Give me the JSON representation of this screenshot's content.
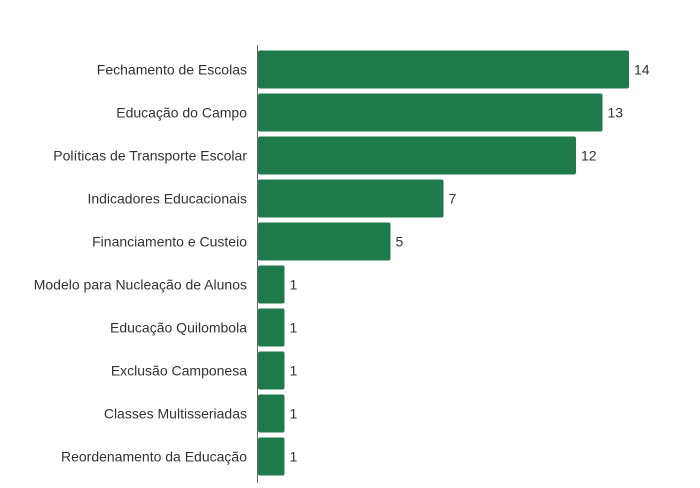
{
  "chart_data": {
    "type": "bar",
    "orientation": "horizontal",
    "categories": [
      "Fechamento de Escolas",
      "Educação do Campo",
      "Políticas de Transporte Escolar",
      "Indicadores Educacionais",
      "Financiamento e Custeio",
      "Modelo para Nucleação de Alunos",
      "Educação Quilombola",
      "Exclusão Camponesa",
      "Classes Multisseriadas",
      "Reordenamento da Educação"
    ],
    "values": [
      14,
      13,
      12,
      7,
      5,
      1,
      1,
      1,
      1,
      1
    ],
    "value_labels": [
      "14",
      "13",
      "12",
      "7",
      "5",
      "1",
      "1",
      "1",
      "1",
      "1"
    ],
    "title": "",
    "xlabel": "",
    "ylabel": "",
    "xlim": [
      0,
      14
    ],
    "grid": false,
    "legend": "none",
    "colors": {
      "bar": "#1e7a4a",
      "axis": "#666666",
      "text": "#333333"
    }
  }
}
